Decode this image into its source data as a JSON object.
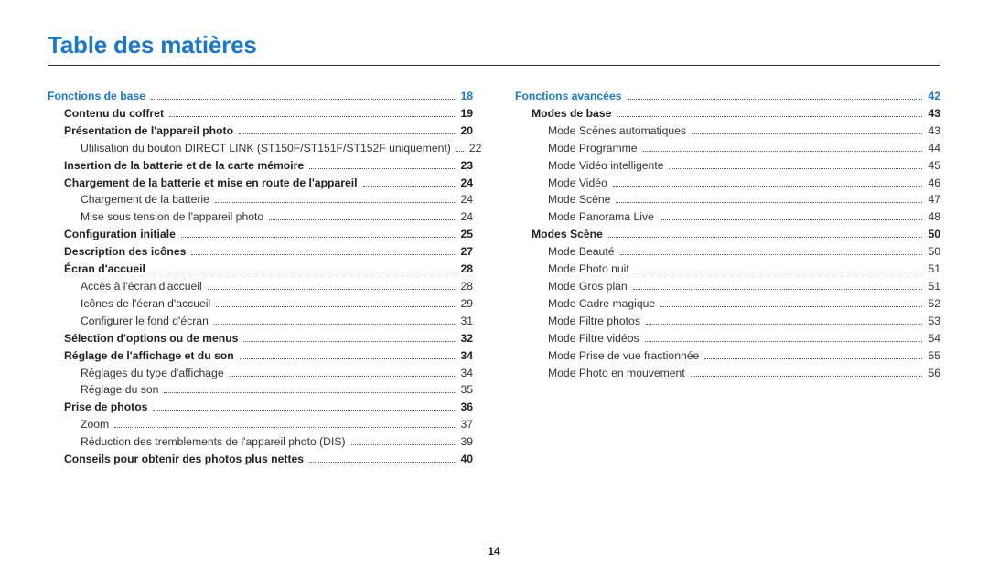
{
  "title": "Table des matières",
  "page_number": "14",
  "columns": [
    [
      {
        "label": "Fonctions de base",
        "page": "18",
        "cls": "section",
        "indent": 0
      },
      {
        "label": "Contenu du coffret",
        "page": "19",
        "cls": "bold",
        "indent": 1
      },
      {
        "label": "Présentation de l'appareil photo",
        "page": "20",
        "cls": "bold",
        "indent": 1
      },
      {
        "label": "Utilisation du bouton DIRECT LINK (ST150F/ST151F/ST152F uniquement)",
        "page": "22",
        "cls": "sub",
        "indent": 2
      },
      {
        "label": "Insertion de la batterie et de la carte mémoire",
        "page": "23",
        "cls": "bold",
        "indent": 1
      },
      {
        "label": "Chargement de la batterie et mise en route de l'appareil",
        "page": "24",
        "cls": "bold",
        "indent": 1
      },
      {
        "label": "Chargement de la batterie",
        "page": "24",
        "cls": "sub",
        "indent": 2
      },
      {
        "label": "Mise sous tension de l'appareil photo",
        "page": "24",
        "cls": "sub",
        "indent": 2
      },
      {
        "label": "Configuration initiale",
        "page": "25",
        "cls": "bold",
        "indent": 1
      },
      {
        "label": "Description des icônes",
        "page": "27",
        "cls": "bold",
        "indent": 1
      },
      {
        "label": "Écran d'accueil",
        "page": "28",
        "cls": "bold",
        "indent": 1
      },
      {
        "label": "Accès à l'écran d'accueil",
        "page": "28",
        "cls": "sub",
        "indent": 2
      },
      {
        "label": "Icônes de l'écran d'accueil",
        "page": "29",
        "cls": "sub",
        "indent": 2
      },
      {
        "label": "Configurer le fond d'écran",
        "page": "31",
        "cls": "sub",
        "indent": 2
      },
      {
        "label": "Sélection d'options ou de menus",
        "page": "32",
        "cls": "bold",
        "indent": 1
      },
      {
        "label": "Réglage de l'affichage et du son",
        "page": "34",
        "cls": "bold",
        "indent": 1
      },
      {
        "label": "Réglages du type d'affichage",
        "page": "34",
        "cls": "sub",
        "indent": 2
      },
      {
        "label": "Réglage du son",
        "page": "35",
        "cls": "sub",
        "indent": 2
      },
      {
        "label": "Prise de photos",
        "page": "36",
        "cls": "bold",
        "indent": 1
      },
      {
        "label": "Zoom",
        "page": "37",
        "cls": "sub",
        "indent": 2
      },
      {
        "label": "Réduction des tremblements de l'appareil photo (DIS)",
        "page": "39",
        "cls": "sub",
        "indent": 2
      },
      {
        "label": "Conseils pour obtenir des photos plus nettes",
        "page": "40",
        "cls": "bold",
        "indent": 1
      }
    ],
    [
      {
        "label": "Fonctions avancées",
        "page": "42",
        "cls": "section",
        "indent": 0
      },
      {
        "label": "Modes de base",
        "page": "43",
        "cls": "bold",
        "indent": 1
      },
      {
        "label": "Mode Scènes automatiques",
        "page": "43",
        "cls": "sub",
        "indent": 2
      },
      {
        "label": "Mode Programme",
        "page": "44",
        "cls": "sub",
        "indent": 2
      },
      {
        "label": "Mode Vidéo intelligente",
        "page": "45",
        "cls": "sub",
        "indent": 2
      },
      {
        "label": "Mode Vidéo",
        "page": "46",
        "cls": "sub",
        "indent": 2
      },
      {
        "label": "Mode Scène",
        "page": "47",
        "cls": "sub",
        "indent": 2
      },
      {
        "label": "Mode Panorama Live",
        "page": "48",
        "cls": "sub",
        "indent": 2
      },
      {
        "label": "Modes Scène",
        "page": "50",
        "cls": "bold",
        "indent": 1
      },
      {
        "label": "Mode Beauté",
        "page": "50",
        "cls": "sub",
        "indent": 2
      },
      {
        "label": "Mode Photo nuit",
        "page": "51",
        "cls": "sub",
        "indent": 2
      },
      {
        "label": "Mode Gros plan",
        "page": "51",
        "cls": "sub",
        "indent": 2
      },
      {
        "label": "Mode Cadre magique",
        "page": "52",
        "cls": "sub",
        "indent": 2
      },
      {
        "label": "Mode Filtre photos",
        "page": "53",
        "cls": "sub",
        "indent": 2
      },
      {
        "label": "Mode Filtre vidéos",
        "page": "54",
        "cls": "sub",
        "indent": 2
      },
      {
        "label": "Mode Prise de vue fractionnée",
        "page": "55",
        "cls": "sub",
        "indent": 2
      },
      {
        "label": "Mode Photo en mouvement",
        "page": "56",
        "cls": "sub",
        "indent": 2
      }
    ]
  ]
}
